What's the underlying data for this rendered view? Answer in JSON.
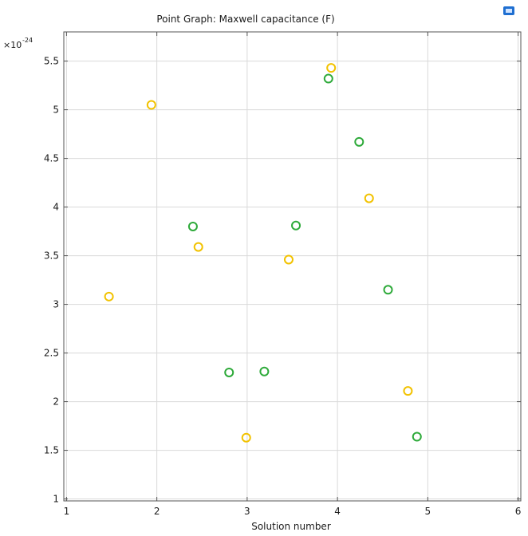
{
  "chart_data": {
    "type": "scatter",
    "title": "Point Graph: Maxwell capacitance (F)",
    "xlabel": "Solution number",
    "ylabel": "",
    "y_multiplier_base": "×10",
    "y_multiplier_exp": "-24",
    "xlim": [
      0.97,
      6.03
    ],
    "ylim": [
      0.98,
      5.8
    ],
    "xticks": [
      1,
      2,
      3,
      4,
      5,
      6
    ],
    "yticks": [
      1,
      1.5,
      2,
      2.5,
      3,
      3.5,
      4,
      4.5,
      5,
      5.5
    ],
    "ytick_labels": [
      "1",
      "1.5",
      "2",
      "2.5",
      "3",
      "3.5",
      "4",
      "4.5",
      "5",
      "5.5"
    ],
    "grid": true,
    "marker": "hollow-circle",
    "series": [
      {
        "color": "#f2c200",
        "points": [
          {
            "x": 1.47,
            "y": 3.08
          },
          {
            "x": 1.94,
            "y": 5.05
          },
          {
            "x": 2.46,
            "y": 3.59
          },
          {
            "x": 2.99,
            "y": 1.63
          },
          {
            "x": 3.46,
            "y": 3.46
          },
          {
            "x": 3.93,
            "y": 5.43
          },
          {
            "x": 4.35,
            "y": 4.09
          },
          {
            "x": 4.78,
            "y": 2.11
          }
        ]
      },
      {
        "color": "#2eaa3a",
        "points": [
          {
            "x": 2.4,
            "y": 3.8
          },
          {
            "x": 2.8,
            "y": 2.3
          },
          {
            "x": 3.19,
            "y": 2.31
          },
          {
            "x": 3.54,
            "y": 3.81
          },
          {
            "x": 3.9,
            "y": 5.32
          },
          {
            "x": 4.24,
            "y": 4.67
          },
          {
            "x": 4.56,
            "y": 3.15
          },
          {
            "x": 4.88,
            "y": 1.64
          }
        ]
      }
    ]
  },
  "toolbar": {
    "icon_name": "window-toggle-icon",
    "icon_color": "#1f6fd1"
  }
}
